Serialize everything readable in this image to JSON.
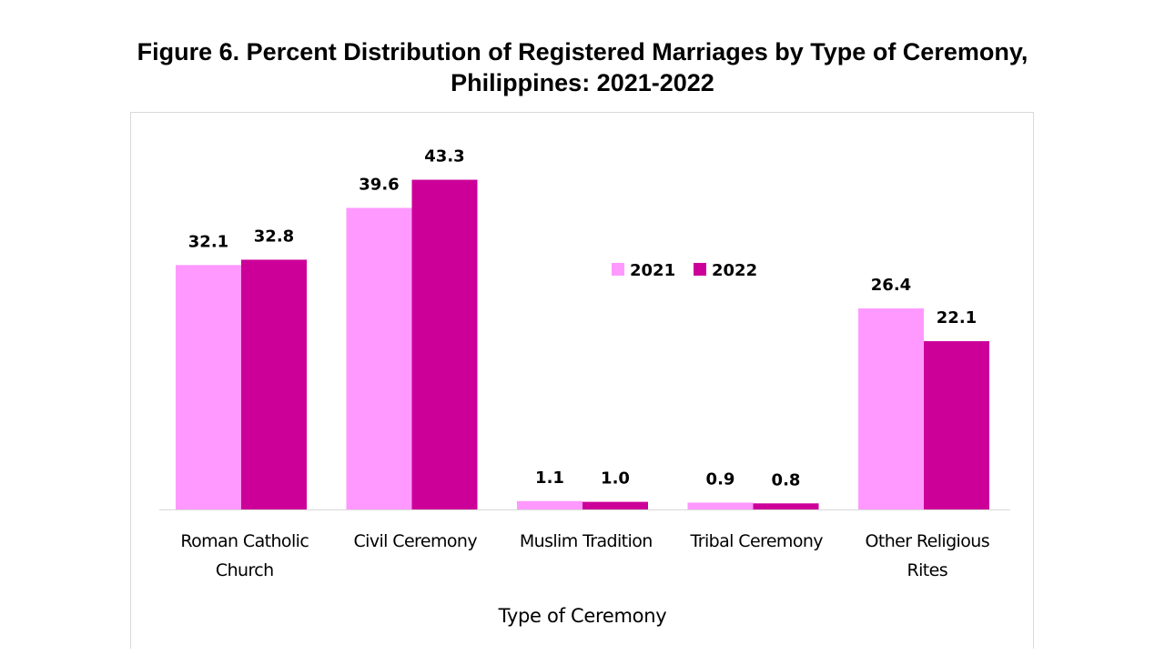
{
  "chart_data": {
    "type": "bar",
    "title": "Figure 6. Percent Distribution of Registered Marriages by Type of Ceremony,",
    "subtitle": "Philippines: 2021-2022",
    "xlabel": "Type of Ceremony",
    "ylabel": "",
    "ylim": [
      0,
      45
    ],
    "grid": false,
    "legend_position": "center",
    "categories": [
      [
        "Roman Catholic",
        "Church"
      ],
      [
        "Civil Ceremony"
      ],
      [
        "Muslim Tradition"
      ],
      [
        "Tribal Ceremony"
      ],
      [
        "Other Religious",
        "Rites"
      ]
    ],
    "series": [
      {
        "name": "2021",
        "color": "#ff99ff",
        "values": [
          32.1,
          39.6,
          1.1,
          0.9,
          26.4
        ]
      },
      {
        "name": "2022",
        "color": "#cc0099",
        "values": [
          32.8,
          43.3,
          1.0,
          0.8,
          22.1
        ]
      }
    ]
  }
}
